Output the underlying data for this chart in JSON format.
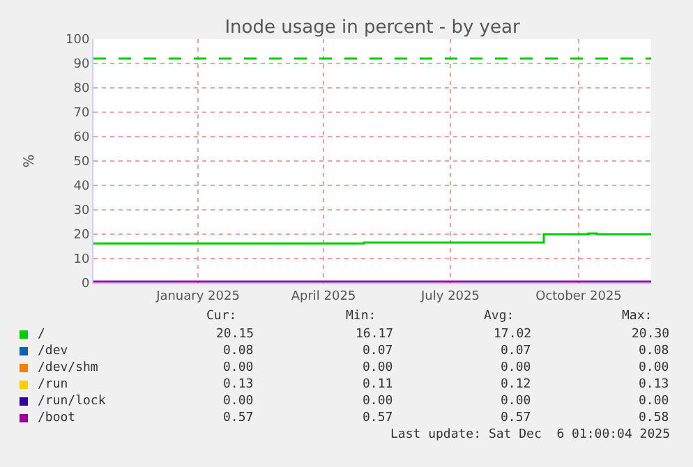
{
  "chart_data": {
    "type": "step",
    "title": "Inode usage in percent - by year",
    "ylabel": "%",
    "x": [
      "2024-10-18",
      "2025-11-22"
    ],
    "xlim": [
      "2024-10-18",
      "2025-11-22"
    ],
    "xticks": [
      {
        "value": "2025-01-01",
        "label": "January 2025"
      },
      {
        "value": "2025-04-01",
        "label": "April 2025"
      },
      {
        "value": "2025-07-01",
        "label": "July 2025"
      },
      {
        "value": "2025-10-01",
        "label": "October 2025"
      }
    ],
    "ylim": [
      0,
      100
    ],
    "yticks": [
      0,
      10,
      20,
      30,
      40,
      50,
      60,
      70,
      80,
      90,
      100
    ],
    "grid": true,
    "legend": "bottom",
    "series": [
      {
        "name": "/",
        "color": "#00cc00",
        "x": [
          "2024-10-18",
          "2025-04-30",
          "2025-09-06",
          "2025-10-08",
          "2025-10-14",
          "2025-11-22"
        ],
        "values": [
          16.2,
          16.6,
          20.0,
          20.3,
          20.0,
          20.2
        ]
      },
      {
        "name": "/dev",
        "color": "#0066b3",
        "values": [
          null,
          null
        ]
      },
      {
        "name": "/dev/shm",
        "color": "#ff8000",
        "values": [
          null,
          null
        ]
      },
      {
        "name": "/run",
        "color": "#ffcc00",
        "values": [
          null,
          null
        ]
      },
      {
        "name": "/run/lock",
        "color": "#330099",
        "values": [
          null,
          null
        ]
      },
      {
        "name": "/boot",
        "color": "#990099",
        "values": [
          0.6,
          0.6
        ]
      }
    ],
    "ref_lines": [
      {
        "axis": "y",
        "value": 92,
        "color": "#00cc00",
        "line_style": "dashed"
      }
    ],
    "annotations": [
      "Cur:",
      "Min:",
      "Avg:",
      "Max:",
      "20.15",
      "16.17",
      "17.02",
      "20.30",
      "0.08",
      "0.07",
      "0.07",
      "0.08",
      "0.00",
      "0.00",
      "0.00",
      "0.00",
      "0.13",
      "0.11",
      "0.12",
      "0.13",
      "0.00",
      "0.00",
      "0.00",
      "0.00",
      "0.57",
      "0.57",
      "0.57",
      "0.58",
      "Last update: Sat Dec  6 01:00:04 2025"
    ]
  }
}
